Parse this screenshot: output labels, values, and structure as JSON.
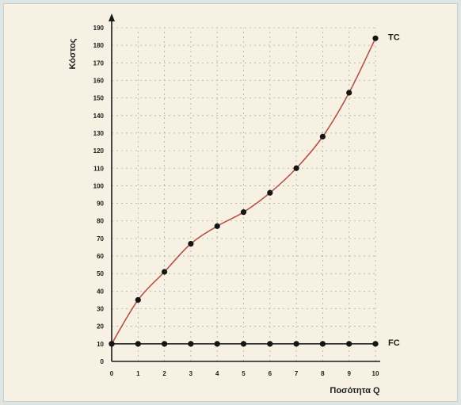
{
  "chart_data": {
    "type": "line",
    "xlabel": "Ποσότητα Q",
    "ylabel": "Κόστος",
    "xlim": [
      0,
      10
    ],
    "ylim": [
      0,
      190
    ],
    "x_ticks": [
      0,
      1,
      2,
      3,
      4,
      5,
      6,
      7,
      8,
      9,
      10
    ],
    "y_ticks": [
      0,
      10,
      20,
      30,
      40,
      50,
      60,
      70,
      80,
      90,
      100,
      110,
      120,
      130,
      140,
      150,
      160,
      170,
      180,
      190
    ],
    "grid": true,
    "x": [
      0,
      1,
      2,
      3,
      4,
      5,
      6,
      7,
      8,
      9,
      10
    ],
    "series": [
      {
        "name": "TC",
        "values": [
          10,
          35,
          51,
          67,
          77,
          85,
          96,
          110,
          128,
          153,
          184
        ],
        "color": "#b5524a"
      },
      {
        "name": "FC",
        "values": [
          10,
          10,
          10,
          10,
          10,
          10,
          10,
          10,
          10,
          10,
          10
        ],
        "color": "#1f1f1f"
      }
    ],
    "marker_color": "#151515",
    "grid_color": "#a9b3a0",
    "axis_color": "#1a1a1a"
  }
}
